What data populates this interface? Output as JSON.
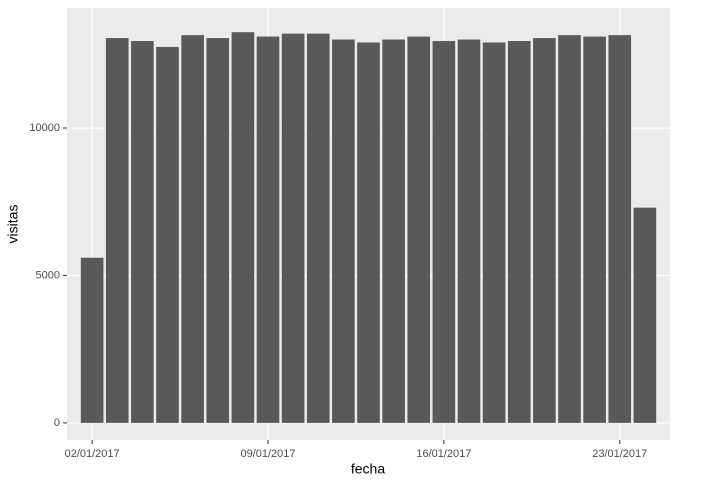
{
  "chart_data": {
    "type": "bar",
    "x_label": "fecha",
    "y_label": "visitas",
    "x": [
      "02/01/2017",
      "03/01/2017",
      "04/01/2017",
      "05/01/2017",
      "06/01/2017",
      "07/01/2017",
      "08/01/2017",
      "09/01/2017",
      "10/01/2017",
      "11/01/2017",
      "12/01/2017",
      "13/01/2017",
      "14/01/2017",
      "15/01/2017",
      "16/01/2017",
      "17/01/2017",
      "18/01/2017",
      "19/01/2017",
      "20/01/2017",
      "21/01/2017",
      "22/01/2017",
      "23/01/2017",
      "24/01/2017"
    ],
    "values": [
      5600,
      13050,
      12950,
      12750,
      13150,
      13050,
      13250,
      13100,
      13200,
      13200,
      13000,
      12900,
      13000,
      13100,
      12950,
      13000,
      12900,
      12950,
      13050,
      13150,
      13100,
      13150,
      7300
    ],
    "color": "#595959",
    "xlim": [
      "01/01/2017",
      "25/01/2017"
    ],
    "xticks": [
      "02/01/2017",
      "09/01/2017",
      "16/01/2017",
      "23/01/2017"
    ],
    "ylim": [
      -580,
      14070
    ],
    "yticks": [
      0,
      5000,
      10000
    ],
    "grid": true
  }
}
